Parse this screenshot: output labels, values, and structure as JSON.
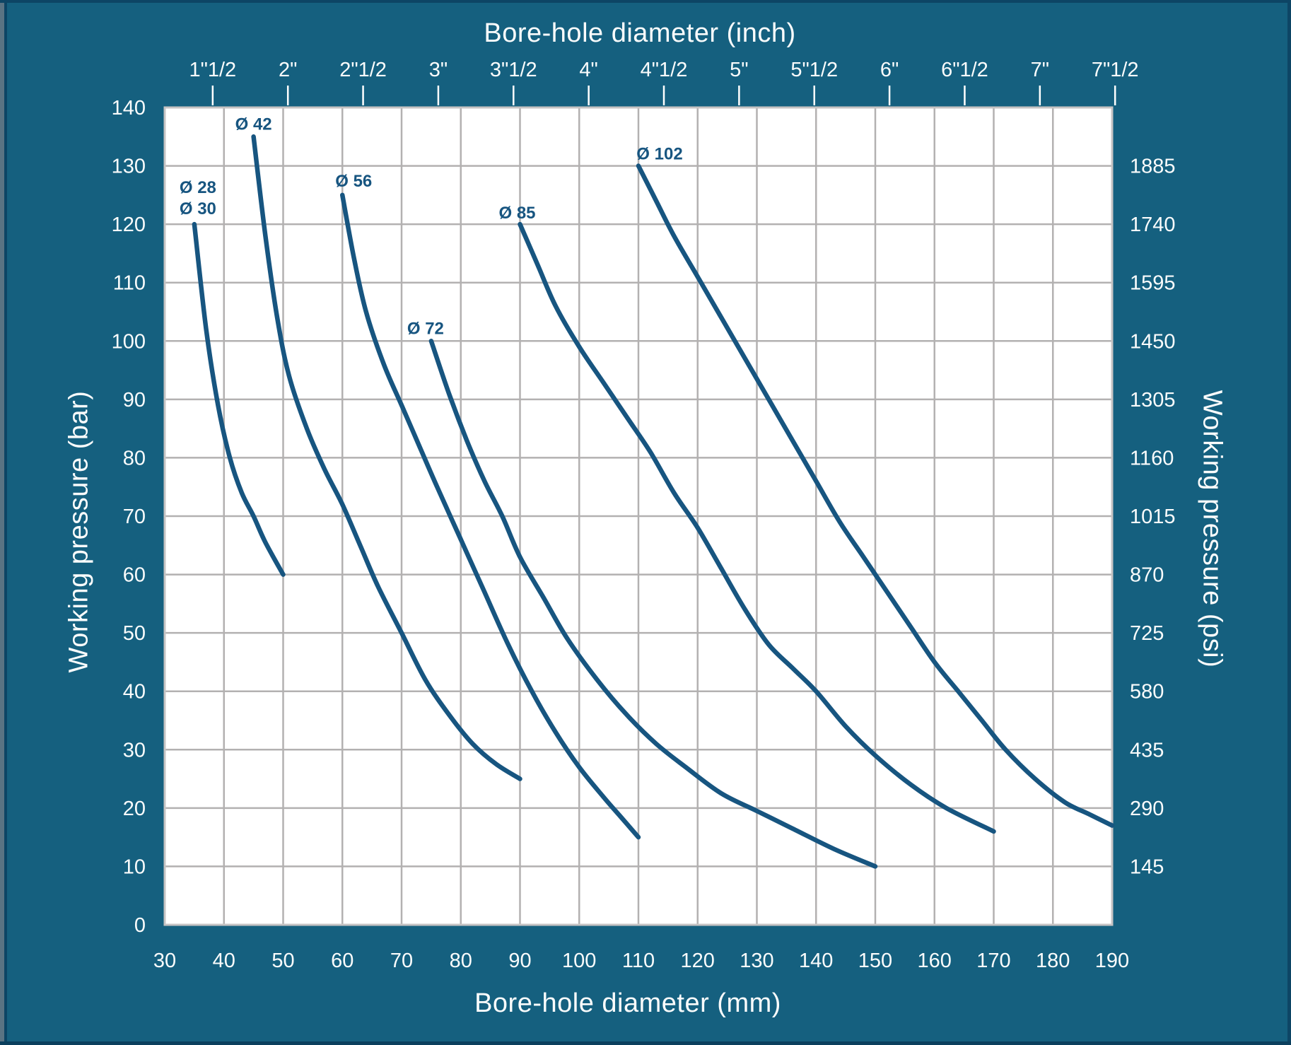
{
  "colors": {
    "background": "#15607F",
    "plot_background": "#FFFFFF",
    "grid": "#B3B1B1",
    "plot_border": "#C6C3C3",
    "curve": "#175580",
    "curve_label": "#175580",
    "text_light": "#FAFCFC",
    "tick_mark": "#FFFFFF",
    "frame_gray": "#5A7383",
    "frame_navy": "#0D4565"
  },
  "chart_data": {
    "type": "line",
    "grid": true,
    "x_axis_bottom": {
      "label": "Bore-hole diameter (mm)",
      "unit": "mm",
      "range": [
        30,
        190
      ],
      "ticks": [
        30,
        40,
        50,
        60,
        70,
        80,
        90,
        100,
        110,
        120,
        130,
        140,
        150,
        160,
        170,
        180,
        190
      ]
    },
    "x_axis_top": {
      "label": "Bore-hole diameter (inch)",
      "unit": "inch",
      "mm_per_inch": 25.4,
      "ticks": [
        {
          "label": "1\"1/2",
          "inches": 1.5
        },
        {
          "label": "2\"",
          "inches": 2
        },
        {
          "label": "2\"1/2",
          "inches": 2.5
        },
        {
          "label": "3\"",
          "inches": 3
        },
        {
          "label": "3\"1/2",
          "inches": 3.5
        },
        {
          "label": "4\"",
          "inches": 4
        },
        {
          "label": "4\"1/2",
          "inches": 4.5
        },
        {
          "label": "5\"",
          "inches": 5
        },
        {
          "label": "5\"1/2",
          "inches": 5.5
        },
        {
          "label": "6\"",
          "inches": 6
        },
        {
          "label": "6\"1/2",
          "inches": 6.5
        },
        {
          "label": "7\"",
          "inches": 7
        },
        {
          "label": "7\"1/2",
          "inches": 7.5
        }
      ]
    },
    "y_axis_left": {
      "label": "Working pressure (bar)",
      "unit": "bar",
      "range": [
        0,
        140
      ],
      "ticks": [
        0,
        10,
        20,
        30,
        40,
        50,
        60,
        70,
        80,
        90,
        100,
        110,
        120,
        130,
        140
      ]
    },
    "y_axis_right": {
      "label": "Working pressure (psi)",
      "unit": "psi",
      "psi_per_bar": 14.5,
      "ticks": [
        145,
        290,
        435,
        580,
        725,
        870,
        1015,
        1160,
        1305,
        1450,
        1595,
        1740,
        1885
      ]
    },
    "series": [
      {
        "id": "o28_30",
        "name": "Ø 28 / Ø 30",
        "label_lines": [
          "Ø 28",
          "Ø 30"
        ],
        "label_dx": 5,
        "label_dy": -14,
        "label_line_gap": 30,
        "points": [
          [
            35,
            120
          ],
          [
            37,
            102
          ],
          [
            39,
            89
          ],
          [
            41,
            80
          ],
          [
            43,
            74
          ],
          [
            45,
            70
          ],
          [
            47,
            65.5
          ],
          [
            50,
            60
          ]
        ]
      },
      {
        "id": "o42",
        "name": "Ø 42",
        "label_lines": [
          "Ø 42"
        ],
        "label_dx": 0,
        "label_dy": -10,
        "label_line_gap": 30,
        "points": [
          [
            45,
            135
          ],
          [
            47,
            118
          ],
          [
            49,
            104
          ],
          [
            51,
            94
          ],
          [
            54,
            85
          ],
          [
            57,
            78
          ],
          [
            60,
            72
          ],
          [
            63,
            65
          ],
          [
            66,
            58
          ],
          [
            70,
            50
          ],
          [
            74,
            42
          ],
          [
            78,
            36
          ],
          [
            82,
            31
          ],
          [
            86,
            27.5
          ],
          [
            90,
            25
          ]
        ]
      },
      {
        "id": "o56",
        "name": "Ø 56",
        "label_lines": [
          "Ø 56"
        ],
        "label_dx": 16,
        "label_dy": -12,
        "label_line_gap": 30,
        "points": [
          [
            60,
            125
          ],
          [
            62,
            114
          ],
          [
            64,
            105
          ],
          [
            67,
            96
          ],
          [
            70,
            89
          ],
          [
            73,
            82
          ],
          [
            76,
            75
          ],
          [
            80,
            66
          ],
          [
            84,
            57
          ],
          [
            88,
            48
          ],
          [
            92,
            40
          ],
          [
            96,
            33
          ],
          [
            100,
            27
          ],
          [
            104,
            22
          ],
          [
            107,
            18.5
          ],
          [
            110,
            15
          ]
        ]
      },
      {
        "id": "o72",
        "name": "Ø 72",
        "label_lines": [
          "Ø 72"
        ],
        "label_dx": -8,
        "label_dy": -10,
        "label_line_gap": 30,
        "points": [
          [
            75,
            100
          ],
          [
            78,
            91
          ],
          [
            81,
            83
          ],
          [
            84,
            76
          ],
          [
            87,
            70
          ],
          [
            90,
            63
          ],
          [
            94,
            56
          ],
          [
            98,
            49
          ],
          [
            103,
            42
          ],
          [
            108,
            36
          ],
          [
            113,
            31
          ],
          [
            118,
            27
          ],
          [
            124,
            22.5
          ],
          [
            130,
            19.5
          ],
          [
            136,
            16.5
          ],
          [
            143,
            13
          ],
          [
            150,
            10
          ]
        ]
      },
      {
        "id": "o85",
        "name": "Ø 85",
        "label_lines": [
          "Ø 85"
        ],
        "label_dx": -4,
        "label_dy": -8,
        "label_line_gap": 30,
        "points": [
          [
            90,
            120
          ],
          [
            93,
            113
          ],
          [
            96,
            106
          ],
          [
            100,
            99
          ],
          [
            104,
            93
          ],
          [
            108,
            87
          ],
          [
            112,
            81
          ],
          [
            116,
            74
          ],
          [
            120,
            68
          ],
          [
            124,
            61
          ],
          [
            128,
            54
          ],
          [
            132,
            48
          ],
          [
            136,
            44
          ],
          [
            140,
            40
          ],
          [
            145,
            34
          ],
          [
            150,
            29
          ],
          [
            156,
            24
          ],
          [
            162,
            20
          ],
          [
            170,
            16
          ]
        ]
      },
      {
        "id": "o102",
        "name": "Ø 102",
        "label_lines": [
          "Ø 102"
        ],
        "label_dx": 30,
        "label_dy": -9,
        "label_line_gap": 30,
        "points": [
          [
            110,
            130
          ],
          [
            113,
            124
          ],
          [
            116,
            118
          ],
          [
            120,
            111
          ],
          [
            124,
            104
          ],
          [
            128,
            97
          ],
          [
            132,
            90
          ],
          [
            136,
            83
          ],
          [
            140,
            76
          ],
          [
            144,
            69
          ],
          [
            148,
            63
          ],
          [
            152,
            57
          ],
          [
            156,
            51
          ],
          [
            160,
            45
          ],
          [
            164,
            40
          ],
          [
            168,
            35
          ],
          [
            172,
            30
          ],
          [
            177,
            25
          ],
          [
            182,
            21
          ],
          [
            186,
            19
          ],
          [
            190,
            17
          ]
        ]
      }
    ]
  }
}
